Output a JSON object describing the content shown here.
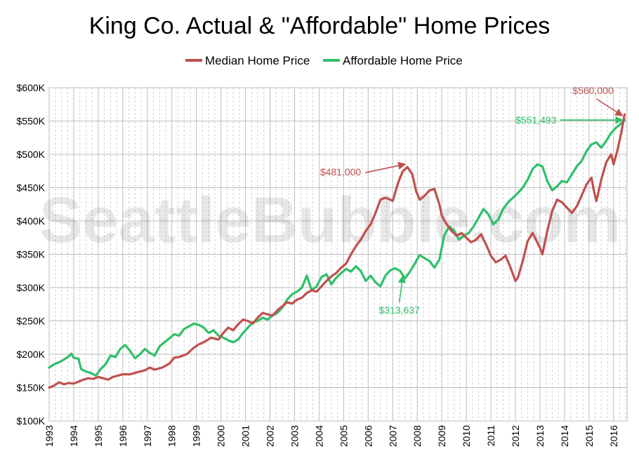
{
  "chart_data": {
    "type": "line",
    "title": "King Co. Actual & \"Affordable\" Home Prices",
    "watermark": "SeattleBubble.com",
    "xlabel": "",
    "ylabel": "",
    "xlim": [
      1993.0,
      2016.55
    ],
    "ylim": [
      100000,
      600000
    ],
    "x_ticks": [
      "1993",
      "1994",
      "1995",
      "1996",
      "1997",
      "1998",
      "1999",
      "2000",
      "2001",
      "2002",
      "2003",
      "2004",
      "2005",
      "2006",
      "2007",
      "2008",
      "2009",
      "2010",
      "2011",
      "2012",
      "2013",
      "2014",
      "2015",
      "2016"
    ],
    "y_ticks": [
      "$100K",
      "$150K",
      "$200K",
      "$250K",
      "$300K",
      "$350K",
      "$400K",
      "$450K",
      "$500K",
      "$550K",
      "$600K"
    ],
    "y_tick_values": [
      100000,
      150000,
      200000,
      250000,
      300000,
      350000,
      400000,
      450000,
      500000,
      550000,
      600000
    ],
    "grid": true,
    "legend_position": "top-center",
    "series": [
      {
        "name": "Median Home Price",
        "color": "#c0504d",
        "points": [
          [
            1993.0,
            150000
          ],
          [
            1993.2,
            153000
          ],
          [
            1993.4,
            158000
          ],
          [
            1993.6,
            155000
          ],
          [
            1993.8,
            157000
          ],
          [
            1994.0,
            156000
          ],
          [
            1994.2,
            159000
          ],
          [
            1994.4,
            162000
          ],
          [
            1994.6,
            164000
          ],
          [
            1994.8,
            163000
          ],
          [
            1995.0,
            166000
          ],
          [
            1995.2,
            164000
          ],
          [
            1995.4,
            162000
          ],
          [
            1995.6,
            166000
          ],
          [
            1995.8,
            168000
          ],
          [
            1996.0,
            170000
          ],
          [
            1996.3,
            170000
          ],
          [
            1996.6,
            173000
          ],
          [
            1996.9,
            176000
          ],
          [
            1997.1,
            180000
          ],
          [
            1997.3,
            177000
          ],
          [
            1997.6,
            180000
          ],
          [
            1997.9,
            186000
          ],
          [
            1998.1,
            195000
          ],
          [
            1998.3,
            196000
          ],
          [
            1998.6,
            200000
          ],
          [
            1998.9,
            210000
          ],
          [
            1999.1,
            215000
          ],
          [
            1999.3,
            218000
          ],
          [
            1999.6,
            225000
          ],
          [
            1999.9,
            222000
          ],
          [
            2000.1,
            232000
          ],
          [
            2000.3,
            240000
          ],
          [
            2000.5,
            236000
          ],
          [
            2000.7,
            245000
          ],
          [
            2000.9,
            252000
          ],
          [
            2001.1,
            250000
          ],
          [
            2001.3,
            246000
          ],
          [
            2001.5,
            255000
          ],
          [
            2001.7,
            262000
          ],
          [
            2001.9,
            260000
          ],
          [
            2002.1,
            258000
          ],
          [
            2002.3,
            266000
          ],
          [
            2002.5,
            272000
          ],
          [
            2002.7,
            278000
          ],
          [
            2002.9,
            276000
          ],
          [
            2003.1,
            282000
          ],
          [
            2003.3,
            285000
          ],
          [
            2003.5,
            292000
          ],
          [
            2003.7,
            296000
          ],
          [
            2003.9,
            294000
          ],
          [
            2004.1,
            302000
          ],
          [
            2004.3,
            310000
          ],
          [
            2004.5,
            317000
          ],
          [
            2004.7,
            322000
          ],
          [
            2004.9,
            330000
          ],
          [
            2005.1,
            336000
          ],
          [
            2005.3,
            350000
          ],
          [
            2005.5,
            362000
          ],
          [
            2005.7,
            372000
          ],
          [
            2005.9,
            385000
          ],
          [
            2006.1,
            395000
          ],
          [
            2006.3,
            412000
          ],
          [
            2006.5,
            432000
          ],
          [
            2006.7,
            435000
          ],
          [
            2006.9,
            432000
          ],
          [
            2007.0,
            430000
          ],
          [
            2007.2,
            455000
          ],
          [
            2007.4,
            474000
          ],
          [
            2007.6,
            481000
          ],
          [
            2007.8,
            470000
          ],
          [
            2007.95,
            445000
          ],
          [
            2008.1,
            432000
          ],
          [
            2008.3,
            438000
          ],
          [
            2008.5,
            446000
          ],
          [
            2008.7,
            448000
          ],
          [
            2008.9,
            425000
          ],
          [
            2009.0,
            408000
          ],
          [
            2009.2,
            395000
          ],
          [
            2009.4,
            385000
          ],
          [
            2009.6,
            378000
          ],
          [
            2009.8,
            382000
          ],
          [
            2010.0,
            375000
          ],
          [
            2010.2,
            368000
          ],
          [
            2010.4,
            372000
          ],
          [
            2010.6,
            380000
          ],
          [
            2010.8,
            365000
          ],
          [
            2011.0,
            348000
          ],
          [
            2011.2,
            338000
          ],
          [
            2011.4,
            342000
          ],
          [
            2011.6,
            348000
          ],
          [
            2011.8,
            330000
          ],
          [
            2012.0,
            310000
          ],
          [
            2012.1,
            315000
          ],
          [
            2012.3,
            340000
          ],
          [
            2012.5,
            370000
          ],
          [
            2012.7,
            382000
          ],
          [
            2012.8,
            375000
          ],
          [
            2013.0,
            360000
          ],
          [
            2013.1,
            350000
          ],
          [
            2013.3,
            385000
          ],
          [
            2013.5,
            415000
          ],
          [
            2013.7,
            432000
          ],
          [
            2013.9,
            428000
          ],
          [
            2014.1,
            420000
          ],
          [
            2014.3,
            412000
          ],
          [
            2014.5,
            422000
          ],
          [
            2014.7,
            438000
          ],
          [
            2014.9,
            455000
          ],
          [
            2015.1,
            465000
          ],
          [
            2015.2,
            445000
          ],
          [
            2015.3,
            430000
          ],
          [
            2015.5,
            462000
          ],
          [
            2015.7,
            488000
          ],
          [
            2015.9,
            500000
          ],
          [
            2016.0,
            485000
          ],
          [
            2016.15,
            505000
          ],
          [
            2016.3,
            530000
          ],
          [
            2016.45,
            560000
          ]
        ]
      },
      {
        "name": "Affordable Home Price",
        "color": "#2fc06a",
        "points": [
          [
            1993.0,
            180000
          ],
          [
            1993.2,
            185000
          ],
          [
            1993.4,
            188000
          ],
          [
            1993.6,
            192000
          ],
          [
            1993.8,
            197000
          ],
          [
            1993.9,
            201000
          ],
          [
            1994.0,
            195000
          ],
          [
            1994.2,
            193000
          ],
          [
            1994.3,
            178000
          ],
          [
            1994.5,
            174000
          ],
          [
            1994.7,
            172000
          ],
          [
            1994.9,
            168000
          ],
          [
            1995.1,
            178000
          ],
          [
            1995.3,
            185000
          ],
          [
            1995.5,
            198000
          ],
          [
            1995.7,
            196000
          ],
          [
            1995.9,
            208000
          ],
          [
            1996.1,
            214000
          ],
          [
            1996.3,
            205000
          ],
          [
            1996.5,
            194000
          ],
          [
            1996.7,
            200000
          ],
          [
            1996.9,
            208000
          ],
          [
            1997.1,
            202000
          ],
          [
            1997.3,
            198000
          ],
          [
            1997.5,
            212000
          ],
          [
            1997.7,
            218000
          ],
          [
            1997.9,
            224000
          ],
          [
            1998.1,
            230000
          ],
          [
            1998.3,
            228000
          ],
          [
            1998.5,
            238000
          ],
          [
            1998.7,
            242000
          ],
          [
            1998.9,
            246000
          ],
          [
            1999.1,
            244000
          ],
          [
            1999.3,
            240000
          ],
          [
            1999.5,
            232000
          ],
          [
            1999.7,
            236000
          ],
          [
            1999.9,
            228000
          ],
          [
            2000.1,
            225000
          ],
          [
            2000.3,
            221000
          ],
          [
            2000.5,
            218000
          ],
          [
            2000.7,
            222000
          ],
          [
            2000.9,
            232000
          ],
          [
            2001.1,
            240000
          ],
          [
            2001.3,
            248000
          ],
          [
            2001.5,
            250000
          ],
          [
            2001.7,
            255000
          ],
          [
            2001.9,
            252000
          ],
          [
            2002.1,
            258000
          ],
          [
            2002.3,
            262000
          ],
          [
            2002.5,
            270000
          ],
          [
            2002.7,
            282000
          ],
          [
            2002.9,
            290000
          ],
          [
            2003.1,
            294000
          ],
          [
            2003.3,
            300000
          ],
          [
            2003.5,
            318000
          ],
          [
            2003.7,
            296000
          ],
          [
            2003.9,
            302000
          ],
          [
            2004.1,
            316000
          ],
          [
            2004.3,
            320000
          ],
          [
            2004.5,
            305000
          ],
          [
            2004.7,
            315000
          ],
          [
            2004.9,
            322000
          ],
          [
            2005.1,
            328000
          ],
          [
            2005.3,
            324000
          ],
          [
            2005.5,
            332000
          ],
          [
            2005.7,
            325000
          ],
          [
            2005.9,
            310000
          ],
          [
            2006.1,
            318000
          ],
          [
            2006.3,
            308000
          ],
          [
            2006.5,
            302000
          ],
          [
            2006.7,
            318000
          ],
          [
            2006.9,
            326000
          ],
          [
            2007.1,
            329000
          ],
          [
            2007.3,
            325000
          ],
          [
            2007.5,
            313637
          ],
          [
            2007.7,
            324000
          ],
          [
            2007.9,
            336000
          ],
          [
            2008.1,
            349000
          ],
          [
            2008.3,
            344000
          ],
          [
            2008.5,
            340000
          ],
          [
            2008.7,
            330000
          ],
          [
            2008.9,
            342000
          ],
          [
            2009.1,
            378000
          ],
          [
            2009.3,
            392000
          ],
          [
            2009.5,
            386000
          ],
          [
            2009.7,
            372000
          ],
          [
            2009.9,
            378000
          ],
          [
            2010.1,
            382000
          ],
          [
            2010.3,
            392000
          ],
          [
            2010.5,
            405000
          ],
          [
            2010.7,
            418000
          ],
          [
            2010.9,
            410000
          ],
          [
            2011.1,
            395000
          ],
          [
            2011.3,
            402000
          ],
          [
            2011.5,
            418000
          ],
          [
            2011.7,
            428000
          ],
          [
            2011.9,
            435000
          ],
          [
            2012.1,
            442000
          ],
          [
            2012.3,
            450000
          ],
          [
            2012.5,
            462000
          ],
          [
            2012.7,
            478000
          ],
          [
            2012.9,
            485000
          ],
          [
            2013.1,
            482000
          ],
          [
            2013.3,
            460000
          ],
          [
            2013.5,
            446000
          ],
          [
            2013.7,
            452000
          ],
          [
            2013.9,
            460000
          ],
          [
            2014.1,
            458000
          ],
          [
            2014.3,
            470000
          ],
          [
            2014.5,
            482000
          ],
          [
            2014.7,
            490000
          ],
          [
            2014.9,
            505000
          ],
          [
            2015.1,
            515000
          ],
          [
            2015.3,
            518000
          ],
          [
            2015.5,
            510000
          ],
          [
            2015.7,
            520000
          ],
          [
            2015.9,
            532000
          ],
          [
            2016.1,
            540000
          ],
          [
            2016.3,
            546000
          ],
          [
            2016.45,
            551493
          ]
        ]
      }
    ],
    "annotations": [
      {
        "text": "$560,000",
        "series": 0,
        "x": 2016.45,
        "y": 560000,
        "color": "#c0504d"
      },
      {
        "text": "$551,493",
        "series": 1,
        "x": 2016.45,
        "y": 551493,
        "color": "#2fc06a"
      },
      {
        "text": "$481,000",
        "series": 0,
        "x": 2007.6,
        "y": 481000,
        "color": "#c0504d"
      },
      {
        "text": "$313,637",
        "series": 1,
        "x": 2007.5,
        "y": 313637,
        "color": "#2fc06a"
      }
    ]
  }
}
